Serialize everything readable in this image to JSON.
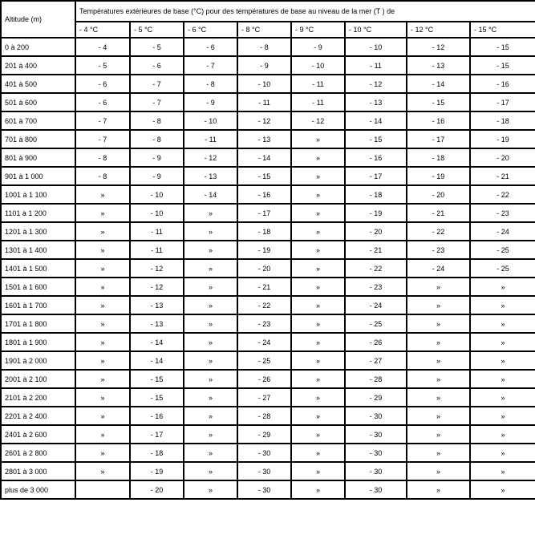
{
  "table": {
    "altitude_header": "Altitude (m)",
    "group_header": "Températures extérieures de base (°C) pour des températures de base au niveau de la mer (T ) de",
    "columns": [
      "- 4 °C",
      "- 5 °C",
      "- 6 °C",
      "- 8 °C",
      "- 9 °C",
      "- 10 °C",
      "- 12 °C",
      "- 15 °C"
    ],
    "rows": [
      [
        "0 à 200",
        "- 4",
        "- 5",
        "- 6",
        "- 8",
        "- 9",
        "- 10",
        "- 12",
        "- 15"
      ],
      [
        "201 à 400",
        "- 5",
        "- 6",
        "- 7",
        "- 9",
        "- 10",
        "- 11",
        "- 13",
        "- 15"
      ],
      [
        "401 à 500",
        "- 6",
        "- 7",
        "- 8",
        "- 10",
        "- 11",
        "- 12",
        "- 14",
        "- 16"
      ],
      [
        "501 à 600",
        "- 6",
        "- 7",
        "- 9",
        "- 11",
        "- 11",
        "- 13",
        "- 15",
        "- 17"
      ],
      [
        "601 à 700",
        "- 7",
        "- 8",
        "- 10",
        "- 12",
        "- 12",
        "- 14",
        "- 16",
        "- 18"
      ],
      [
        "701 à 800",
        "- 7",
        "- 8",
        "- 11",
        "- 13",
        "»",
        "- 15",
        "- 17",
        "- 19"
      ],
      [
        "801 à 900",
        "- 8",
        "- 9",
        "- 12",
        "- 14",
        "»",
        "- 16",
        "- 18",
        "- 20"
      ],
      [
        "901 à 1 000",
        "- 8",
        "- 9",
        "- 13",
        "- 15",
        "»",
        "- 17",
        "- 19",
        "- 21"
      ],
      [
        "1001 à 1 100",
        "»",
        "- 10",
        "- 14",
        "- 16",
        "»",
        "- 18",
        "- 20",
        "- 22"
      ],
      [
        "1101 à 1 200",
        "»",
        "- 10",
        "»",
        "- 17",
        "»",
        "- 19",
        "- 21",
        "- 23"
      ],
      [
        "1201 à 1 300",
        "»",
        "- 11",
        "»",
        "- 18",
        "»",
        "- 20",
        "- 22",
        "- 24"
      ],
      [
        "1301 à 1 400",
        "»",
        "- 11",
        "»",
        "- 19",
        "»",
        "- 21",
        "- 23",
        "- 25"
      ],
      [
        "1401 à 1 500",
        "»",
        "- 12",
        "»",
        "- 20",
        "»",
        "- 22",
        "- 24",
        "- 25"
      ],
      [
        "1501 à 1 600",
        "»",
        "- 12",
        "»",
        "- 21",
        "»",
        "- 23",
        "»",
        "»"
      ],
      [
        "1601 à 1 700",
        "»",
        "- 13",
        "»",
        "- 22",
        "»",
        "- 24",
        "»",
        "»"
      ],
      [
        "1701 à 1 800",
        "»",
        "- 13",
        "»",
        "- 23",
        "»",
        "- 25",
        "»",
        "»"
      ],
      [
        "1801 à 1 900",
        "»",
        "- 14",
        "»",
        "- 24",
        "»",
        "- 26",
        "»",
        "»"
      ],
      [
        "1901 à 2 000",
        "»",
        "- 14",
        "»",
        "- 25",
        "»",
        "- 27",
        "»",
        "»"
      ],
      [
        "2001 à 2 100",
        "»",
        "- 15",
        "»",
        "- 26",
        "»",
        "- 28",
        "»",
        "»"
      ],
      [
        "2101 à 2 200",
        "»",
        "- 15",
        "»",
        "- 27",
        "»",
        "- 29",
        "»",
        "»"
      ],
      [
        "2201 à 2 400",
        "»",
        "- 16",
        "»",
        "- 28",
        "»",
        "- 30",
        "»",
        "»"
      ],
      [
        "2401 à 2 600",
        "»",
        "- 17",
        "»",
        "- 29",
        "»",
        "- 30",
        "»",
        "»"
      ],
      [
        "2601 à 2 800",
        "»",
        "- 18",
        "»",
        "- 30",
        "»",
        "- 30",
        "»",
        "»"
      ],
      [
        "2801 à 3 000",
        "»",
        "- 19",
        "»",
        "- 30",
        "»",
        "- 30",
        "»",
        "»"
      ],
      [
        "plus de 3 000",
        "",
        "- 20",
        "»",
        "- 30",
        "»",
        "- 30",
        "»",
        "»"
      ]
    ]
  }
}
